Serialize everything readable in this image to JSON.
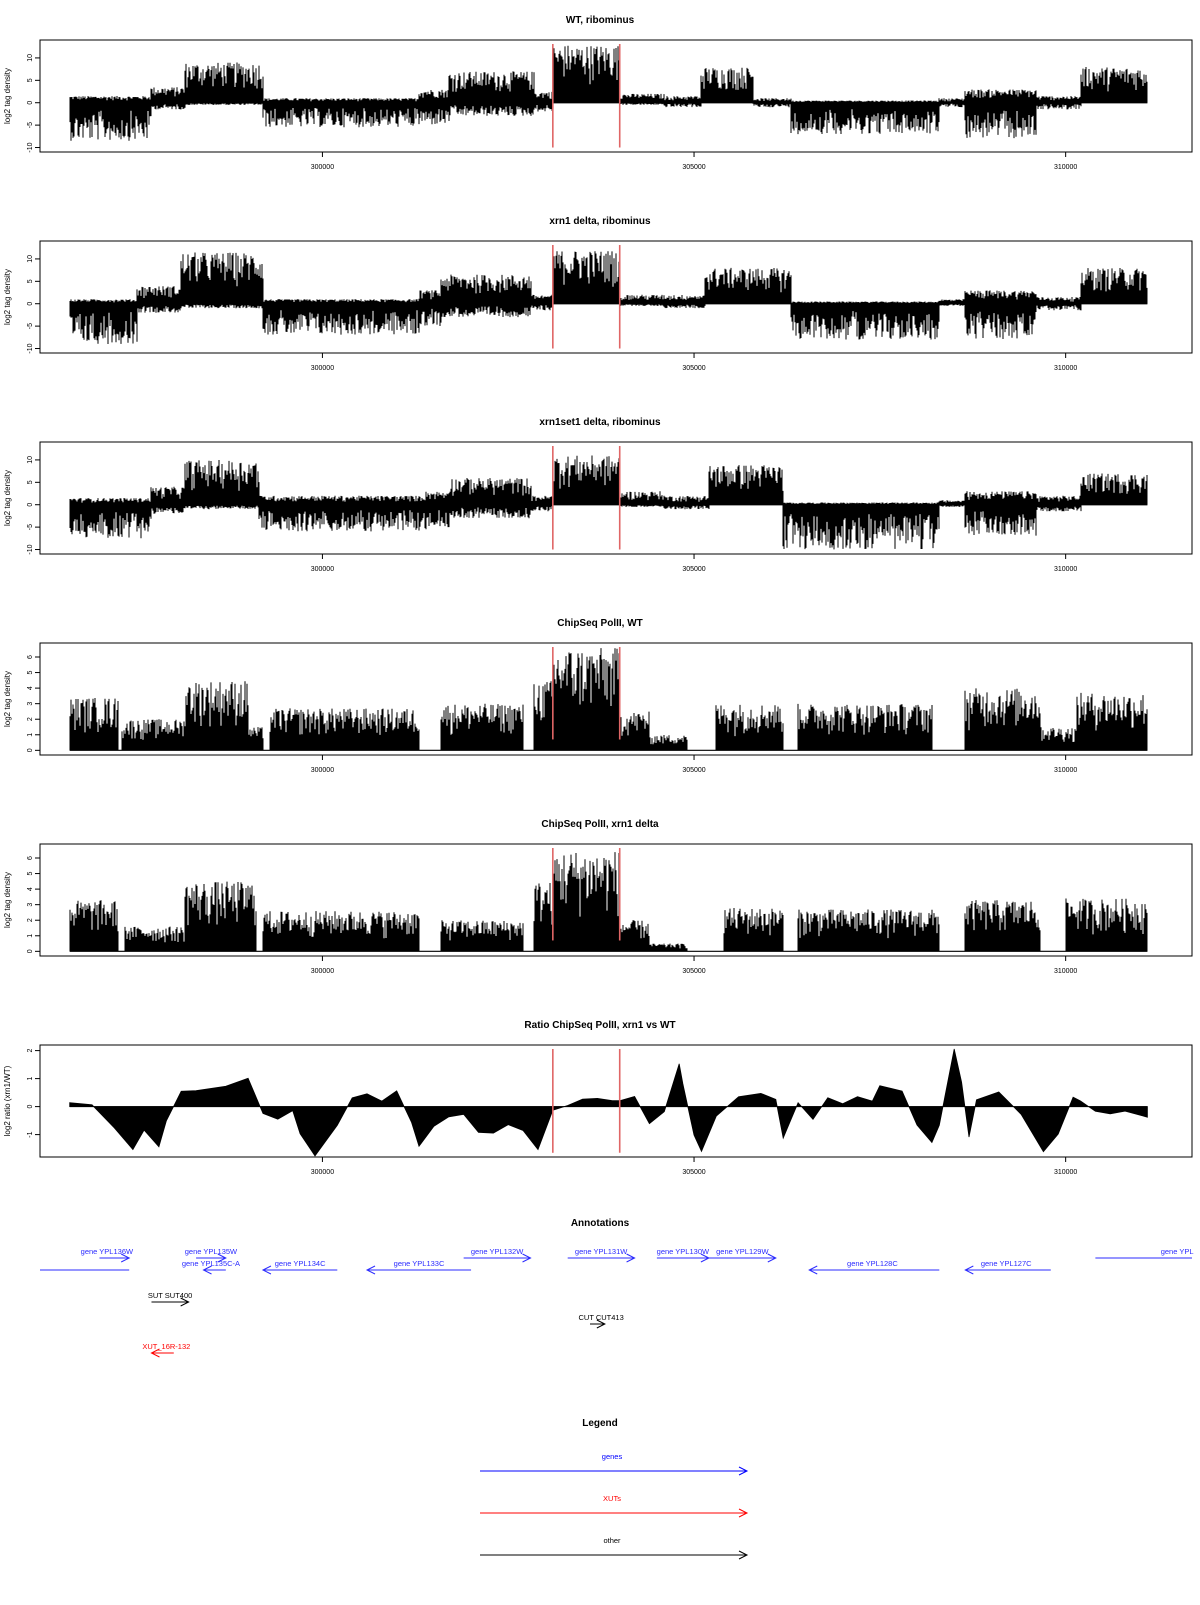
{
  "chart_data": [
    {
      "type": "area",
      "title": "WT, ribominus",
      "ylabel": "log2 tag density",
      "xlabel": "",
      "xlim": [
        296200,
        311700
      ],
      "ylim": [
        -11,
        14
      ],
      "yticks": [
        -10,
        -5,
        0,
        5,
        10
      ],
      "xticks": [
        300000,
        305000,
        310000
      ],
      "markers_x": [
        303100,
        304000
      ],
      "marker_color": "#e06666",
      "segments": [
        {
          "x": [
            296600,
            297700
          ],
          "ymin": -8.5,
          "ymax": 1.5
        },
        {
          "x": [
            297700,
            298150
          ],
          "ymin": -1.5,
          "ymax": 3.5
        },
        {
          "x": [
            298150,
            299200
          ],
          "ymin": -0.5,
          "ymax": 9
        },
        {
          "x": [
            299200,
            300600
          ],
          "ymin": -5.5,
          "ymax": 1
        },
        {
          "x": [
            300600,
            301300
          ],
          "ymin": -5.5,
          "ymax": 1
        },
        {
          "x": [
            301300,
            301700
          ],
          "ymin": -5,
          "ymax": 3
        },
        {
          "x": [
            301700,
            302850
          ],
          "ymin": -3,
          "ymax": 7
        },
        {
          "x": [
            302850,
            303100
          ],
          "ymin": -2,
          "ymax": 2.5
        },
        {
          "x": [
            303100,
            304000
          ],
          "ymin": 0,
          "ymax": 13
        },
        {
          "x": [
            304000,
            304600
          ],
          "ymin": -0.5,
          "ymax": 2
        },
        {
          "x": [
            304600,
            305100
          ],
          "ymin": -1,
          "ymax": 1.5
        },
        {
          "x": [
            305100,
            305800
          ],
          "ymin": 0,
          "ymax": 8
        },
        {
          "x": [
            305800,
            306300
          ],
          "ymin": -1,
          "ymax": 1
        },
        {
          "x": [
            306300,
            308300
          ],
          "ymin": -7,
          "ymax": 0.5
        },
        {
          "x": [
            308300,
            308650
          ],
          "ymin": -1,
          "ymax": 1
        },
        {
          "x": [
            308650,
            309600
          ],
          "ymin": -8,
          "ymax": 3
        },
        {
          "x": [
            309600,
            310200
          ],
          "ymin": -1.5,
          "ymax": 1.5
        },
        {
          "x": [
            310200,
            311100
          ],
          "ymin": 0,
          "ymax": 8
        }
      ]
    },
    {
      "type": "area",
      "title": "xrn1 delta, ribominus",
      "ylabel": "log2 tag density",
      "xlabel": "",
      "xlim": [
        296200,
        311700
      ],
      "ylim": [
        -11,
        14
      ],
      "yticks": [
        -10,
        -5,
        0,
        5,
        10
      ],
      "xticks": [
        300000,
        305000,
        310000
      ],
      "markers_x": [
        303100,
        304000
      ],
      "marker_color": "#e06666",
      "segments": [
        {
          "x": [
            296600,
            297500
          ],
          "ymin": -9,
          "ymax": 1
        },
        {
          "x": [
            297500,
            298100
          ],
          "ymin": -2,
          "ymax": 4
        },
        {
          "x": [
            298100,
            299200
          ],
          "ymin": -1,
          "ymax": 11.5
        },
        {
          "x": [
            299200,
            301300
          ],
          "ymin": -7,
          "ymax": 1
        },
        {
          "x": [
            301300,
            301600
          ],
          "ymin": -5,
          "ymax": 3
        },
        {
          "x": [
            301600,
            302800
          ],
          "ymin": -3,
          "ymax": 6.5
        },
        {
          "x": [
            302800,
            303100
          ],
          "ymin": -1.5,
          "ymax": 2
        },
        {
          "x": [
            303100,
            304000
          ],
          "ymin": 0,
          "ymax": 12
        },
        {
          "x": [
            304000,
            304600
          ],
          "ymin": -0.5,
          "ymax": 2
        },
        {
          "x": [
            304600,
            305150
          ],
          "ymin": -1,
          "ymax": 2
        },
        {
          "x": [
            305150,
            306300
          ],
          "ymin": 0,
          "ymax": 8
        },
        {
          "x": [
            306300,
            308300
          ],
          "ymin": -8,
          "ymax": 0.5
        },
        {
          "x": [
            308300,
            308650
          ],
          "ymin": -0.5,
          "ymax": 1
        },
        {
          "x": [
            308650,
            309600
          ],
          "ymin": -8,
          "ymax": 3
        },
        {
          "x": [
            309600,
            310200
          ],
          "ymin": -1.5,
          "ymax": 1.5
        },
        {
          "x": [
            310200,
            311100
          ],
          "ymin": 0,
          "ymax": 8
        }
      ]
    },
    {
      "type": "area",
      "title": "xrn1set1 delta, ribominus",
      "ylabel": "log2 tag density",
      "xlabel": "",
      "xlim": [
        296200,
        311700
      ],
      "ylim": [
        -11,
        14
      ],
      "yticks": [
        -10,
        -5,
        0,
        5,
        10
      ],
      "xticks": [
        300000,
        305000,
        310000
      ],
      "markers_x": [
        303100,
        304000
      ],
      "marker_color": "#e06666",
      "segments": [
        {
          "x": [
            296600,
            297700
          ],
          "ymin": -7.5,
          "ymax": 1.5
        },
        {
          "x": [
            297700,
            298150
          ],
          "ymin": -2,
          "ymax": 4
        },
        {
          "x": [
            298150,
            299150
          ],
          "ymin": -1,
          "ymax": 10
        },
        {
          "x": [
            299150,
            301400
          ],
          "ymin": -6,
          "ymax": 2
        },
        {
          "x": [
            301400,
            301700
          ],
          "ymin": -5,
          "ymax": 3
        },
        {
          "x": [
            301700,
            302800
          ],
          "ymin": -3,
          "ymax": 6
        },
        {
          "x": [
            302800,
            303100
          ],
          "ymin": -1.5,
          "ymax": 2
        },
        {
          "x": [
            303100,
            304000
          ],
          "ymin": 0,
          "ymax": 11
        },
        {
          "x": [
            304000,
            304600
          ],
          "ymin": -0.5,
          "ymax": 3
        },
        {
          "x": [
            304600,
            305200
          ],
          "ymin": -1,
          "ymax": 2
        },
        {
          "x": [
            305200,
            306200
          ],
          "ymin": 0,
          "ymax": 9
        },
        {
          "x": [
            306200,
            308300
          ],
          "ymin": -10,
          "ymax": 0.5
        },
        {
          "x": [
            308300,
            308650
          ],
          "ymin": -0.5,
          "ymax": 1
        },
        {
          "x": [
            308650,
            309600
          ],
          "ymin": -7,
          "ymax": 3
        },
        {
          "x": [
            309600,
            310200
          ],
          "ymin": -1.5,
          "ymax": 2
        },
        {
          "x": [
            310200,
            311100
          ],
          "ymin": 0,
          "ymax": 7
        }
      ]
    },
    {
      "type": "area",
      "title": "ChipSeq PolII, WT",
      "ylabel": "log2 tag density",
      "xlabel": "",
      "xlim": [
        296200,
        311700
      ],
      "ylim": [
        -0.3,
        6.9
      ],
      "yticks": [
        0,
        1,
        2,
        3,
        4,
        5,
        6
      ],
      "xticks": [
        300000,
        305000,
        310000
      ],
      "markers_x": [
        303100,
        304000
      ],
      "marker_color": "#e06666",
      "segments": [
        {
          "x": [
            296600,
            297250
          ],
          "ymin": 0,
          "ymax": 3.4
        },
        {
          "x": [
            297300,
            298150
          ],
          "ymin": 0,
          "ymax": 2
        },
        {
          "x": [
            298150,
            299000
          ],
          "ymin": 0,
          "ymax": 4.5
        },
        {
          "x": [
            299000,
            299200
          ],
          "ymin": 0,
          "ymax": 1.5
        },
        {
          "x": [
            299300,
            301300
          ],
          "ymin": 0,
          "ymax": 2.7
        },
        {
          "x": [
            301600,
            302700
          ],
          "ymin": 0,
          "ymax": 3
        },
        {
          "x": [
            302850,
            303100
          ],
          "ymin": 0,
          "ymax": 4.5
        },
        {
          "x": [
            303100,
            304000
          ],
          "ymin": 0,
          "ymax": 6.6
        },
        {
          "x": [
            304000,
            304400
          ],
          "ymin": 0,
          "ymax": 2.5
        },
        {
          "x": [
            304400,
            304900
          ],
          "ymin": 0,
          "ymax": 1
        },
        {
          "x": [
            305300,
            306200
          ],
          "ymin": 0,
          "ymax": 3
        },
        {
          "x": [
            306400,
            308200
          ],
          "ymin": 0,
          "ymax": 3
        },
        {
          "x": [
            308650,
            309650
          ],
          "ymin": 0,
          "ymax": 4
        },
        {
          "x": [
            309650,
            310150
          ],
          "ymin": 0,
          "ymax": 1.5
        },
        {
          "x": [
            310150,
            311100
          ],
          "ymin": 0,
          "ymax": 3.7
        }
      ]
    },
    {
      "type": "area",
      "title": "ChipSeq PolII, xrn1 delta",
      "ylabel": "log2 tag density",
      "xlabel": "",
      "xlim": [
        296200,
        311700
      ],
      "ylim": [
        -0.3,
        6.9
      ],
      "yticks": [
        0,
        1,
        2,
        3,
        4,
        5,
        6
      ],
      "xticks": [
        300000,
        305000,
        310000
      ],
      "markers_x": [
        303100,
        304000
      ],
      "marker_color": "#e06666",
      "segments": [
        {
          "x": [
            296600,
            297250
          ],
          "ymin": 0,
          "ymax": 3.3
        },
        {
          "x": [
            297350,
            298150
          ],
          "ymin": 0,
          "ymax": 1.6
        },
        {
          "x": [
            298150,
            299100
          ],
          "ymin": 0,
          "ymax": 4.5
        },
        {
          "x": [
            299200,
            301300
          ],
          "ymin": 0,
          "ymax": 2.6
        },
        {
          "x": [
            301600,
            302700
          ],
          "ymin": 0,
          "ymax": 2
        },
        {
          "x": [
            302850,
            303100
          ],
          "ymin": 0,
          "ymax": 4.5
        },
        {
          "x": [
            303100,
            304000
          ],
          "ymin": 0,
          "ymax": 6.5
        },
        {
          "x": [
            304000,
            304400
          ],
          "ymin": 0,
          "ymax": 2
        },
        {
          "x": [
            304400,
            304900
          ],
          "ymin": 0,
          "ymax": 0.5
        },
        {
          "x": [
            305400,
            306200
          ],
          "ymin": 0,
          "ymax": 2.8
        },
        {
          "x": [
            306400,
            308300
          ],
          "ymin": 0,
          "ymax": 2.7
        },
        {
          "x": [
            308650,
            309650
          ],
          "ymin": 0,
          "ymax": 3.3
        },
        {
          "x": [
            310000,
            311100
          ],
          "ymin": 0,
          "ymax": 3.4
        }
      ]
    },
    {
      "type": "area",
      "title": "Ratio ChipSeq PolII, xrn1 vs WT",
      "ylabel": "log2 ratio (xrn1/WT)",
      "xlabel": "",
      "xlim": [
        296200,
        311700
      ],
      "ylim": [
        -1.8,
        2.2
      ],
      "yticks": [
        -1,
        0,
        1,
        2
      ],
      "xticks": [
        300000,
        305000,
        310000
      ],
      "markers_x": [
        303100,
        304000
      ],
      "marker_color": "#e06666",
      "curve": {
        "x": [
          296600,
          296900,
          297200,
          297450,
          297600,
          297800,
          297900,
          298100,
          298300,
          298700,
          299000,
          299200,
          299400,
          299600,
          299700,
          299900,
          300200,
          300400,
          300600,
          300800,
          301000,
          301200,
          301300,
          301500,
          301700,
          301900,
          302100,
          302300,
          302500,
          302700,
          302900,
          303100,
          303300,
          303500,
          303700,
          303900,
          304000,
          304200,
          304400,
          304600,
          304800,
          304850,
          305000,
          305100,
          305300,
          305600,
          305900,
          306100,
          306200,
          306300,
          306400,
          306600,
          306800,
          307000,
          307200,
          307400,
          307500,
          307800,
          308000,
          308200,
          308300,
          308500,
          308600,
          308700,
          308800,
          309100,
          309400,
          309700,
          309900,
          310100,
          310200,
          310400,
          310600,
          310800,
          311100
        ],
        "y": [
          0.2,
          0,
          -0.8,
          -1.6,
          -0.8,
          -1.4,
          -0.5,
          0.5,
          0.6,
          0.8,
          1.0,
          -0.2,
          -0.5,
          -0.1,
          -0.9,
          -1.8,
          -0.7,
          0.3,
          0.4,
          0.2,
          0.5,
          -0.5,
          -1.4,
          -0.7,
          -0.4,
          -0.2,
          -0.9,
          -1.0,
          -0.6,
          -0.8,
          -1.6,
          -0.2,
          0.1,
          0.3,
          0.25,
          0.2,
          0.2,
          0.4,
          -0.6,
          -0.2,
          1.6,
          0.8,
          -1.0,
          -1.6,
          -0.4,
          0.3,
          0.4,
          0.2,
          -1.2,
          -0.5,
          0.2,
          -0.4,
          0.3,
          0.1,
          0.4,
          0.2,
          0.8,
          0.6,
          -0.6,
          -1.3,
          -0.6,
          2.0,
          0.8,
          -1.1,
          0.3,
          0.5,
          -0.2,
          -1.6,
          -1.0,
          0.4,
          0.2,
          -0.2,
          -0.3,
          -0.2,
          -0.4
        ]
      }
    }
  ],
  "annotations": {
    "title": "Annotations",
    "xlim": [
      296200,
      311700
    ],
    "items": [
      {
        "label": "gene YPL136W",
        "x0": 296200,
        "x1": 297400,
        "dir": "none",
        "row": 0,
        "color": "blue",
        "labelx": 297100
      },
      {
        "label": "",
        "x0": 297000,
        "x1": 297400,
        "dir": "right",
        "row": 1,
        "color": "blue"
      },
      {
        "label": "gene YPL135W",
        "x0": 298300,
        "x1": 298700,
        "dir": "right",
        "row": 1,
        "color": "blue",
        "labelx": 298500
      },
      {
        "label": "gene YPL135C-A",
        "x0": 298400,
        "x1": 298700,
        "dir": "left",
        "row": 2,
        "color": "blue",
        "labelx": 298500
      },
      {
        "label": "gene YPL134C",
        "x0": 299200,
        "x1": 300200,
        "dir": "left",
        "row": 2,
        "color": "blue",
        "labelx": 299700
      },
      {
        "label": "gene YPL133C",
        "x0": 300600,
        "x1": 302000,
        "dir": "left",
        "row": 2,
        "color": "blue",
        "labelx": 301300
      },
      {
        "label": "gene YPL132W",
        "x0": 301900,
        "x1": 302800,
        "dir": "right",
        "row": 1,
        "color": "blue",
        "labelx": 302350
      },
      {
        "label": "gene YPL131W",
        "x0": 303300,
        "x1": 304200,
        "dir": "right",
        "row": 1,
        "color": "blue",
        "labelx": 303750
      },
      {
        "label": "gene YPL130W",
        "x0": 304500,
        "x1": 305200,
        "dir": "right",
        "row": 1,
        "color": "blue",
        "labelx": 304850
      },
      {
        "label": "gene YPL129W",
        "x0": 305200,
        "x1": 306100,
        "dir": "right",
        "row": 1,
        "color": "blue",
        "labelx": 305650
      },
      {
        "label": "gene YPL128C",
        "x0": 306550,
        "x1": 308300,
        "dir": "left",
        "row": 2,
        "color": "blue",
        "labelx": 307400
      },
      {
        "label": "gene YPL127C",
        "x0": 308650,
        "x1": 309800,
        "dir": "left",
        "row": 2,
        "color": "blue",
        "labelx": 309200
      },
      {
        "label": "gene YPL",
        "x0": 310400,
        "x1": 311700,
        "dir": "none",
        "row": 1,
        "color": "blue",
        "labelx": 311500
      },
      {
        "label": "SUT SUT400",
        "x0": 297700,
        "x1": 298200,
        "dir": "right",
        "row": 3,
        "color": "black",
        "labelx": 297950
      },
      {
        "label": "CUT CUT413",
        "x0": 303600,
        "x1": 303800,
        "dir": "right",
        "row": 4,
        "color": "black",
        "labelx": 303750
      },
      {
        "label": "XUT_16R-132",
        "x0": 297700,
        "x1": 298000,
        "dir": "left",
        "row": 5,
        "color": "red",
        "labelx": 297900
      }
    ]
  },
  "legend": {
    "title": "Legend",
    "items": [
      {
        "label": "genes",
        "color": "#0000ff"
      },
      {
        "label": "XUTs",
        "color": "#ff0000"
      },
      {
        "label": "other",
        "color": "#000000"
      }
    ]
  }
}
